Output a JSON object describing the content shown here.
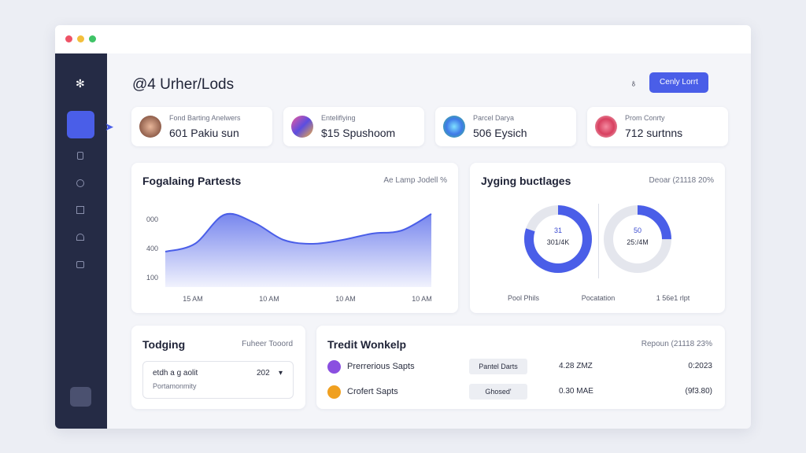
{
  "header": {
    "title": "@4 Urher/Lods",
    "button": "Cenly Lorrt"
  },
  "cards": [
    {
      "label": "Fond Barting Anelwers",
      "value": "601 Pakiu sun"
    },
    {
      "label": "Enteliflying",
      "value": "$15 Spushoom"
    },
    {
      "label": "Parcel Darya",
      "value": "506 Eysich"
    },
    {
      "label": "Prom Conrty",
      "value": "712 surtnns"
    }
  ],
  "area_panel": {
    "title": "Fogalaing Partests",
    "note": "Ae Lamp Jodell %",
    "chart_data": {
      "type": "area",
      "color": "#4a5ee8",
      "y_labels": [
        "000",
        "400",
        "100"
      ],
      "x_labels": [
        "15 AM",
        "10 AM",
        "10 AM",
        "10 AM"
      ],
      "values": [
        45,
        55,
        92,
        82,
        60,
        55,
        60,
        68,
        72,
        93
      ],
      "ylim": [
        0,
        100
      ]
    }
  },
  "donut_panel": {
    "title": "Jyging buctlages",
    "note": "Deoar (21118 20%",
    "donuts": [
      {
        "value": "31",
        "label": "301/4K",
        "share": 80
      },
      {
        "value": "50",
        "label": "25:/4M",
        "share": 25
      }
    ],
    "footer": [
      "Pool Phils",
      "Pocatation",
      "1 56e1 rlpt"
    ]
  },
  "todging": {
    "title": "Todging",
    "note": "Fuheer Tooord",
    "select": "etdh a g aolit",
    "select_value": "202",
    "subtext": "Portamonmity"
  },
  "credit": {
    "title": "Tredit Wonkelp",
    "note": "Repoun (21118 23%",
    "rows": [
      [
        "Prerrerious Sapts",
        "Pantel Darts",
        "4.28 ZMZ",
        "0:2023"
      ],
      [
        "Crofert Sapts",
        "Ghosed'",
        "0.30 MAE",
        "(9f3.80)"
      ]
    ]
  }
}
